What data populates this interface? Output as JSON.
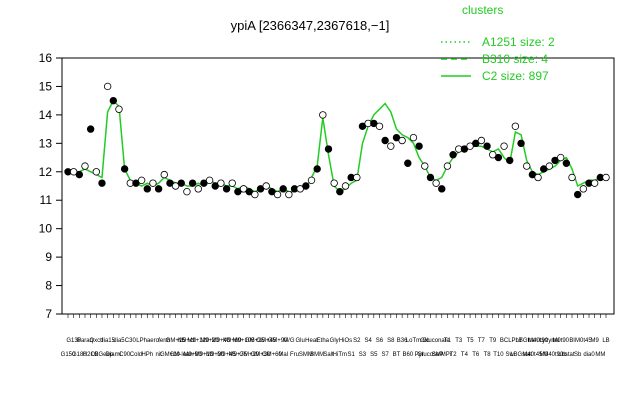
{
  "chart_data": {
    "type": "line",
    "title": "ypiA [2366347,2367618,−1]",
    "xlabel": "",
    "ylabel": "",
    "ylim": [
      7,
      16
    ],
    "y_ticks": [
      7,
      8,
      9,
      10,
      11,
      12,
      13,
      14,
      15,
      16
    ],
    "grid": false,
    "legend": {
      "title": "clusters",
      "placement": "top-right",
      "entries": [
        {
          "label": "A1251 size: 2",
          "style": "dotted"
        },
        {
          "label": "B310 size: 4",
          "style": "dashed"
        },
        {
          "label": "C2 size: 897",
          "style": "solid"
        }
      ]
    },
    "series_color": "#22cc22",
    "point_color": "#000000",
    "x_labels": [
      "G150",
      "G135",
      "G180",
      "Paraq",
      "H2O2",
      "Oxctl",
      "LBGexp",
      "dia15",
      "Diami",
      "dia5",
      "C90",
      "C30",
      "Cold",
      "LPh",
      "HPh",
      "aero",
      "nit",
      "ferm",
      "GM+10",
      "GM+15",
      "GM-lean",
      "M9+ctl",
      "M9+90",
      "M9+120",
      "M9+10",
      "M9+20",
      "M9+30",
      "M9+40",
      "M9+45",
      "M9+60",
      "M9+75",
      "M9+105",
      "GM+20",
      "GM+25",
      "GM+30",
      "GM+45",
      "GM+60",
      "GM+90",
      "Mal",
      "M/G",
      "Fru",
      "Glu",
      "SMM",
      "Heat",
      "BMM",
      "Etha",
      "Salt",
      "Gly",
      "HiTm",
      "HiOs",
      "S1",
      "S2",
      "S3",
      "S4",
      "S5",
      "S6",
      "S7",
      "S8",
      "BT",
      "B36",
      "B60",
      "LoTm",
      "Pyr",
      "Glc",
      "GlucoseP",
      "Gluconate",
      "SMMPr",
      "T1",
      "T2",
      "T3",
      "T4",
      "T5",
      "T6",
      "T7",
      "T8",
      "T9",
      "T10",
      "BC",
      "Sw",
      "LPhT",
      "LBGstat",
      "LBGtran",
      "M40t45",
      "M40t90",
      "M0",
      "Lyzyme",
      "M40t90b",
      "M0t90",
      "Lbstat",
      "Bl",
      "Sb",
      "M0t45",
      "dia0",
      "M9",
      "MM",
      "LB"
    ],
    "x_label_rows": [
      1,
      0,
      1,
      0,
      1,
      0,
      1,
      0,
      1,
      0,
      1,
      0,
      1,
      0,
      1,
      0,
      1,
      0,
      1,
      0,
      1,
      0,
      1,
      0,
      1,
      0,
      1,
      0,
      1,
      0,
      1,
      0,
      1,
      0,
      1,
      0,
      1,
      0,
      1,
      0,
      1,
      0,
      1,
      0,
      1,
      0,
      1,
      0,
      1,
      0,
      1,
      0,
      1,
      0,
      1,
      0,
      1,
      0,
      1,
      0,
      1,
      0,
      1,
      0,
      1,
      0,
      1,
      0,
      1,
      0,
      1,
      0,
      1,
      0,
      1,
      0,
      1,
      0,
      1,
      0,
      1,
      0,
      1,
      0,
      1,
      0,
      1,
      0,
      1,
      0,
      1,
      0,
      1,
      0,
      1,
      0
    ],
    "line_values": [
      12.0,
      12.0,
      12.0,
      12.1,
      12.0,
      11.9,
      11.8,
      14.1,
      14.5,
      14.3,
      12.1,
      11.7,
      11.6,
      11.5,
      11.6,
      11.5,
      11.6,
      11.8,
      11.7,
      11.6,
      11.6,
      11.5,
      11.5,
      11.6,
      11.5,
      11.7,
      11.6,
      11.6,
      11.5,
      11.5,
      11.4,
      11.5,
      11.4,
      11.3,
      11.4,
      11.5,
      11.4,
      11.3,
      11.4,
      11.3,
      11.3,
      11.4,
      11.4,
      11.8,
      12.2,
      13.9,
      12.6,
      11.5,
      11.3,
      11.4,
      11.6,
      11.7,
      13.0,
      13.6,
      14.0,
      14.2,
      14.4,
      14.1,
      13.5,
      13.3,
      13.2,
      13.0,
      12.5,
      12.2,
      11.8,
      11.7,
      11.8,
      12.2,
      12.5,
      12.7,
      12.8,
      12.9,
      12.9,
      12.9,
      12.8,
      12.7,
      12.8,
      12.5,
      12.3,
      13.4,
      13.3,
      12.4,
      12.0,
      11.9,
      12.0,
      12.1,
      12.2,
      12.4,
      12.5,
      12.1,
      11.5,
      11.6,
      11.7,
      11.7,
      11.8,
      11.8
    ],
    "point_values": [
      12.0,
      12.0,
      11.9,
      12.2,
      13.5,
      12.0,
      11.6,
      15.0,
      14.5,
      14.2,
      12.1,
      11.6,
      11.6,
      11.7,
      11.4,
      11.6,
      11.4,
      11.9,
      11.6,
      11.5,
      11.6,
      11.3,
      11.6,
      11.4,
      11.6,
      11.7,
      11.5,
      11.6,
      11.4,
      11.6,
      11.3,
      11.4,
      11.3,
      11.2,
      11.4,
      11.5,
      11.3,
      11.2,
      11.4,
      11.2,
      11.4,
      11.4,
      11.5,
      11.7,
      12.1,
      14.0,
      12.8,
      11.6,
      11.3,
      11.5,
      11.8,
      11.8,
      13.6,
      13.7,
      13.7,
      13.6,
      13.1,
      12.9,
      13.2,
      13.1,
      12.3,
      13.2,
      12.9,
      12.2,
      11.8,
      11.6,
      11.4,
      12.2,
      12.6,
      12.8,
      12.8,
      12.9,
      13.0,
      13.1,
      12.9,
      12.6,
      12.5,
      12.9,
      12.4,
      13.6,
      13.0,
      12.2,
      11.9,
      11.8,
      12.1,
      12.2,
      12.4,
      12.5,
      12.3,
      11.8,
      11.2,
      11.4,
      11.6,
      11.6,
      11.8,
      11.8
    ]
  }
}
